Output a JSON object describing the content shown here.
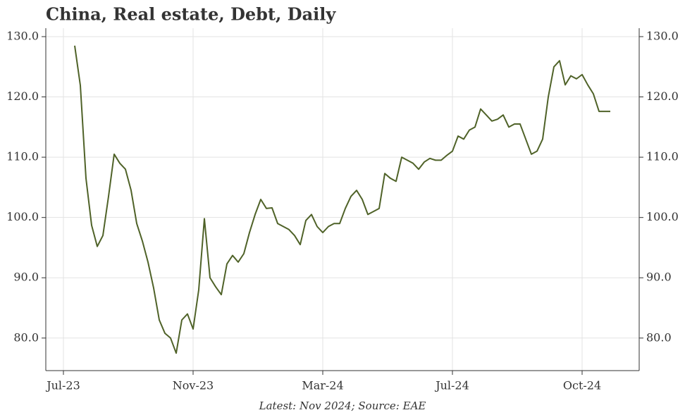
{
  "chart_data": {
    "type": "line",
    "title": "China, Real estate, Debt, Daily",
    "footnote": "Latest: Nov 2024; Source: EAE",
    "categories": [
      "Jul-23",
      null,
      null,
      null,
      null,
      null,
      null,
      null,
      null,
      null,
      null,
      null,
      null,
      null,
      null,
      null,
      null,
      null,
      null,
      null,
      null,
      null,
      null,
      "Nov-23",
      null,
      null,
      null,
      null,
      null,
      null,
      null,
      null,
      null,
      null,
      null,
      null,
      null,
      null,
      null,
      null,
      null,
      null,
      null,
      null,
      null,
      null,
      "Mar-24",
      null,
      null,
      null,
      null,
      null,
      null,
      null,
      null,
      null,
      null,
      null,
      null,
      null,
      null,
      null,
      null,
      null,
      null,
      null,
      null,
      null,
      null,
      "Jul-24",
      null,
      null,
      null,
      null,
      null,
      null,
      null,
      null,
      null,
      null,
      null,
      null,
      null,
      null,
      null,
      null,
      null,
      null,
      null,
      null,
      null,
      null,
      "Oct-24",
      null,
      null,
      null,
      null,
      null
    ],
    "series": [
      {
        "name": "Debt",
        "color": "#4f6228",
        "values": [
          null,
          null,
          128.5,
          121.9,
          106.5,
          98.7,
          95.2,
          97,
          103.5,
          110.5,
          109,
          108,
          104.5,
          99,
          96.1,
          92.6,
          88.3,
          83,
          80.8,
          80,
          77.5,
          83,
          84,
          81.5,
          88,
          99.8,
          90,
          88.5,
          87.2,
          92.3,
          93.7,
          92.6,
          94,
          97.5,
          100.5,
          103,
          101.5,
          101.6,
          99,
          98.5,
          98,
          97,
          95.5,
          99.5,
          100.5,
          98.5,
          97.5,
          98.5,
          99,
          99,
          101.5,
          103.5,
          104.5,
          103,
          100.5,
          101,
          101.5,
          107.3,
          106.5,
          106,
          110,
          109.5,
          109,
          108,
          109.2,
          109.8,
          109.5,
          109.5,
          110.3,
          111,
          113.5,
          113,
          114.5,
          115,
          118,
          117,
          116,
          116.3,
          117,
          115,
          115.5,
          115.5,
          113,
          110.5,
          111,
          113,
          120,
          125,
          126,
          122,
          123.5,
          123,
          123.7,
          122,
          120.5,
          117.6,
          117.6,
          117.6
        ]
      }
    ],
    "ylim": [
      74.6,
      131.4
    ],
    "yticks": [
      {
        "value": 80,
        "label": "80.0"
      },
      {
        "value": 90,
        "label": "90.0"
      },
      {
        "value": 100,
        "label": "100.0"
      },
      {
        "value": 110,
        "label": "110.0"
      },
      {
        "value": 120,
        "label": "120.0"
      },
      {
        "value": 130,
        "label": "130.0"
      }
    ],
    "grid": true
  }
}
